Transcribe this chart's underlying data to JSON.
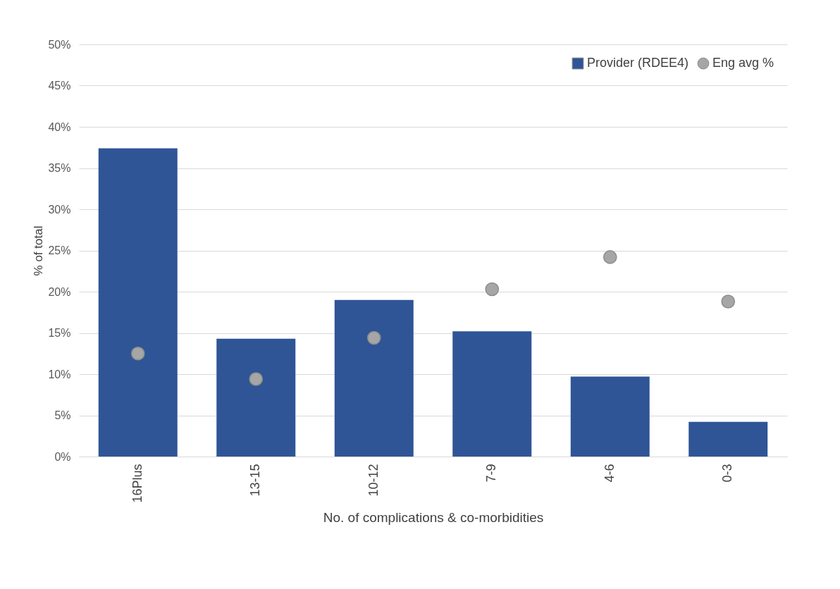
{
  "chart_data": {
    "type": "bar",
    "xlabel": "No. of complications & co-morbidities",
    "ylabel": "% of total",
    "categories": [
      "16Plus",
      "13-15",
      "10-12",
      "7-9",
      "4-6",
      "0-3"
    ],
    "series": [
      {
        "name": "Provider (RDEE4)",
        "color": "#2f5597",
        "values": [
          37.4,
          14.3,
          19.0,
          15.2,
          9.7,
          4.2
        ]
      },
      {
        "name": "Eng avg %",
        "type": "scatter",
        "color": "#a6a6a6",
        "marker": "circle",
        "values": [
          12.5,
          9.4,
          14.4,
          20.3,
          24.2,
          18.8
        ]
      }
    ],
    "ylim": [
      0,
      50
    ],
    "yticks": [
      {
        "value": 0,
        "label": "0%"
      },
      {
        "value": 5,
        "label": "5%"
      },
      {
        "value": 10,
        "label": "10%"
      },
      {
        "value": 15,
        "label": "15%"
      },
      {
        "value": 20,
        "label": "20%"
      },
      {
        "value": 25,
        "label": "25%"
      },
      {
        "value": 30,
        "label": "30%"
      },
      {
        "value": 35,
        "label": "35%"
      },
      {
        "value": 40,
        "label": "40%"
      },
      {
        "value": 45,
        "label": "45%"
      },
      {
        "value": 50,
        "label": "50%"
      }
    ],
    "grid": "y",
    "legend": "top right"
  }
}
